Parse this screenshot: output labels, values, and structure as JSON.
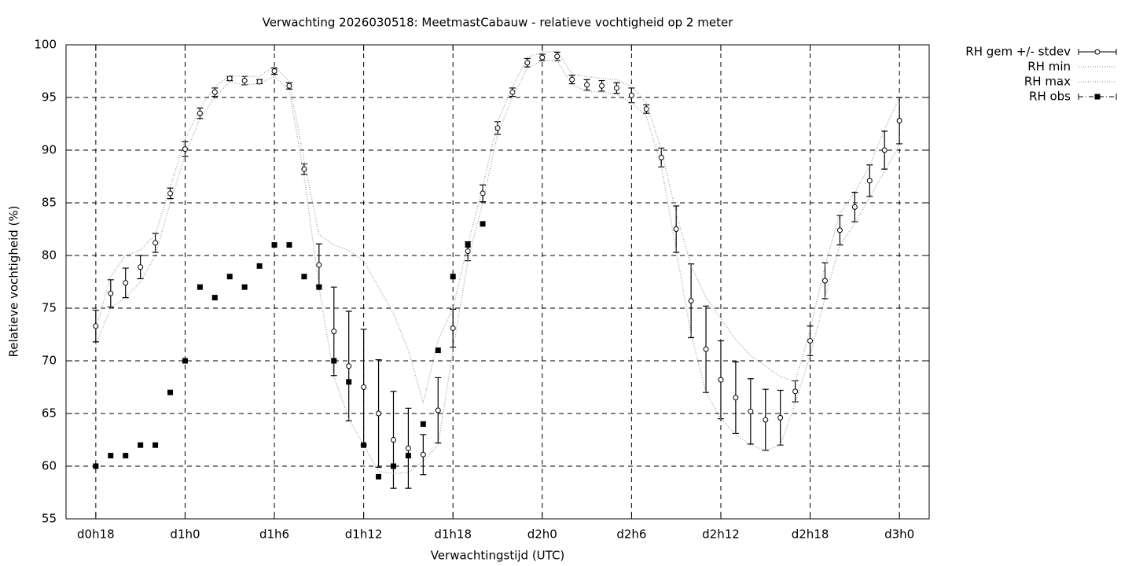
{
  "chart_data": {
    "type": "errorbar",
    "title": "Verwachting 2026030518: MeetmastCabauw - relatieve vochtigheid op 2 meter",
    "xlabel": "Verwachtingstijd (UTC)",
    "ylabel": "Relatieve vochtigheid (%)",
    "xlim": [
      16,
      74
    ],
    "ylim": [
      55,
      100
    ],
    "xticks": [
      {
        "value": 18,
        "label": "d0h18"
      },
      {
        "value": 24,
        "label": "d1h0"
      },
      {
        "value": 30,
        "label": "d1h6"
      },
      {
        "value": 36,
        "label": "d1h12"
      },
      {
        "value": 42,
        "label": "d1h18"
      },
      {
        "value": 48,
        "label": "d2h0"
      },
      {
        "value": 54,
        "label": "d2h6"
      },
      {
        "value": 60,
        "label": "d2h12"
      },
      {
        "value": 66,
        "label": "d2h18"
      },
      {
        "value": 72,
        "label": "d3h0"
      }
    ],
    "yticks": [
      55,
      60,
      65,
      70,
      75,
      80,
      85,
      90,
      95,
      100
    ],
    "grid": true,
    "legend": "outside-top-right",
    "x": [
      18,
      19,
      20,
      21,
      22,
      23,
      24,
      25,
      26,
      27,
      28,
      29,
      30,
      31,
      32,
      33,
      34,
      35,
      36,
      37,
      38,
      39,
      40,
      41,
      42,
      43,
      44,
      45,
      46,
      47,
      48,
      49,
      50,
      51,
      52,
      53,
      54,
      55,
      56,
      57,
      58,
      59,
      60,
      61,
      62,
      63,
      64,
      65,
      66,
      67,
      68,
      69,
      70,
      71,
      72
    ],
    "series": [
      {
        "name": "RH gem +/- stdev",
        "color": "#000000",
        "style": "errorbars",
        "values": [
          73.3,
          76.4,
          77.4,
          78.9,
          81.2,
          85.9,
          90.1,
          93.5,
          95.5,
          96.8,
          96.6,
          96.5,
          97.5,
          96.1,
          88.2,
          79.1,
          72.8,
          69.5,
          67.5,
          65.0,
          62.5,
          61.7,
          61.1,
          65.3,
          73.1,
          80.4,
          85.9,
          92.1,
          95.5,
          98.3,
          98.8,
          98.9,
          96.7,
          96.2,
          96.1,
          95.9,
          95.2,
          93.9,
          89.3,
          82.5,
          75.7,
          71.1,
          68.2,
          66.5,
          65.2,
          64.4,
          64.6,
          67.1,
          71.9,
          77.6,
          82.4,
          84.6,
          87.1,
          90.0,
          92.8
        ],
        "errors": [
          1.5,
          1.3,
          1.4,
          1.1,
          0.9,
          0.5,
          0.7,
          0.5,
          0.4,
          0.2,
          0.4,
          0.2,
          0.3,
          0.3,
          0.5,
          2.0,
          4.2,
          5.2,
          5.5,
          5.1,
          4.6,
          3.8,
          1.9,
          3.1,
          1.8,
          0.9,
          0.8,
          0.6,
          0.4,
          0.4,
          0.3,
          0.4,
          0.4,
          0.5,
          0.5,
          0.5,
          0.7,
          0.4,
          0.9,
          2.2,
          3.5,
          4.1,
          3.7,
          3.4,
          3.1,
          2.9,
          2.6,
          1.0,
          1.4,
          1.7,
          1.4,
          1.4,
          1.5,
          1.8,
          2.2
        ]
      },
      {
        "name": "RH min",
        "color": "#999999",
        "style": "dotted",
        "values": [
          71.5,
          75,
          76,
          77.5,
          80,
          85,
          89.5,
          93,
          95,
          96.5,
          96.2,
          96.3,
          97,
          95.7,
          87.5,
          77,
          68.5,
          64.5,
          62,
          59.5,
          59.3,
          59.4,
          60.5,
          62,
          71,
          79.5,
          85,
          91.5,
          95,
          97.8,
          98.5,
          98.5,
          96.2,
          95.6,
          95.5,
          95.3,
          94.5,
          93.2,
          88.5,
          80.5,
          72.5,
          67,
          64.5,
          63,
          62,
          61.5,
          62,
          66,
          70.5,
          76,
          81,
          83,
          85.5,
          88,
          90.5
        ]
      },
      {
        "name": "RH max",
        "color": "#999999",
        "style": "dotted",
        "values": [
          73,
          78,
          80,
          80.5,
          82,
          86.5,
          91,
          94,
          96,
          97.1,
          97,
          97,
          98,
          96.5,
          89,
          82,
          81,
          80.5,
          79.5,
          77,
          74.5,
          71,
          66,
          72,
          75,
          81,
          86.5,
          92.7,
          96,
          98.8,
          99.3,
          99.4,
          97.2,
          97,
          96.8,
          96.7,
          96,
          94.5,
          90,
          84,
          79,
          76,
          74,
          72,
          70.5,
          69.5,
          68.5,
          68,
          73,
          79,
          84,
          86,
          88.5,
          92,
          95
        ]
      },
      {
        "name": "RH obs",
        "color": "#000000",
        "style": "points",
        "x": [
          18,
          19,
          20,
          21,
          22,
          23,
          24,
          25,
          26,
          27,
          28,
          29,
          30,
          31,
          32,
          33,
          34,
          35,
          36,
          37,
          38,
          39,
          40,
          41,
          42,
          43,
          44
        ],
        "values": [
          60,
          61,
          61,
          62,
          62,
          67,
          70,
          77,
          76,
          78,
          77,
          79,
          81,
          81,
          78,
          77,
          70,
          68,
          62,
          59,
          60,
          61,
          64,
          71,
          78,
          81,
          83
        ]
      }
    ]
  }
}
